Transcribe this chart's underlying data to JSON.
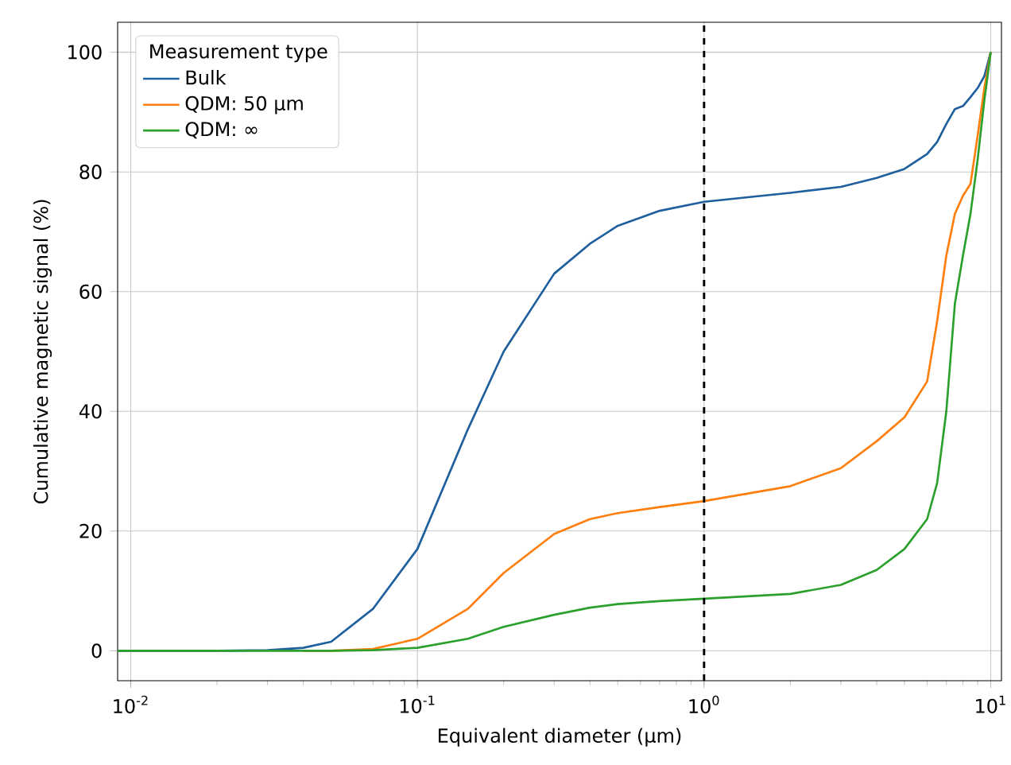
{
  "chart_data": {
    "type": "line",
    "xlabel": "Equivalent diameter (μm)",
    "ylabel": "Cumulative magnetic signal (%)",
    "legend_title": "Measurement type",
    "log": "x",
    "grid": true,
    "legend": "top left",
    "line_style": "solid",
    "marker": "none",
    "xlim": [
      0.009,
      10.9
    ],
    "ylim": [
      -5,
      105
    ],
    "xticks": [
      {
        "value": 0.01,
        "label": "10$^{-2}$"
      },
      {
        "value": 0.1,
        "label": "10$^{-1}$"
      },
      {
        "value": 1,
        "label": "10$^{0}$"
      },
      {
        "value": 10,
        "label": "10$^{1}$"
      }
    ],
    "yticks": [
      0,
      20,
      40,
      60,
      80,
      100
    ],
    "x": [
      0.009,
      0.02,
      0.03,
      0.04,
      0.05,
      0.07,
      0.1,
      0.15,
      0.2,
      0.3,
      0.4,
      0.5,
      0.7,
      1,
      2,
      3,
      4,
      5,
      6,
      6.5,
      7,
      7.5,
      8,
      8.5,
      9,
      9.5,
      10
    ],
    "ref_lines": [
      {
        "axis": "x",
        "value": 1,
        "color": "#000000",
        "line_style": "dashed"
      }
    ],
    "series": [
      {
        "name": "Bulk",
        "color": "#1f5f9e",
        "values": [
          0,
          0,
          0.1,
          0.5,
          1.5,
          7,
          17,
          37,
          50,
          63,
          68,
          71,
          73.5,
          75,
          76.5,
          77.5,
          79,
          80.5,
          83,
          85,
          88,
          90.5,
          91,
          92.5,
          94,
          96,
          100
        ]
      },
      {
        "name": "QDM: 50 μm",
        "color": "#ff7f0e",
        "values": [
          null,
          null,
          null,
          0,
          0,
          0.3,
          2,
          7,
          13,
          19.5,
          22,
          23,
          24,
          25,
          27.5,
          30.5,
          35,
          39,
          45,
          55,
          66,
          73,
          76,
          78,
          86,
          94,
          100
        ]
      },
      {
        "name": "QDM: ∞",
        "color": "#2ca02c",
        "values": [
          0,
          0,
          0,
          0,
          0,
          0.1,
          0.5,
          2,
          4,
          6,
          7.2,
          7.8,
          8.3,
          8.7,
          9.5,
          11,
          13.5,
          17,
          22,
          28,
          40,
          58,
          66,
          73,
          82,
          92,
          100
        ]
      }
    ]
  }
}
